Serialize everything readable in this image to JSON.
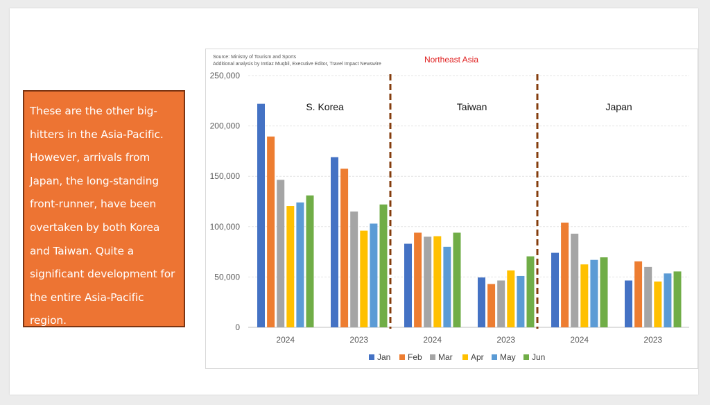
{
  "callout": {
    "text": "These are the other big-hitters in the Asia-Pacific. However, arrivals from Japan, the long-standing front-runner, have been overtaken by both Korea and Taiwan. Quite a significant development for the entire Asia-Pacific region."
  },
  "colors": {
    "callout_bg": "#ed7433",
    "title": "#e02020",
    "divider": "#843c0c",
    "Jan": "#4472c4",
    "Feb": "#ed7d31",
    "Mar": "#a5a5a5",
    "Apr": "#ffc000",
    "May": "#5b9bd5",
    "Jun": "#70ad47"
  },
  "chart_data": {
    "type": "bar",
    "title": "Northeast Asia",
    "source_lines": [
      "Source: Ministry of Tourism and Sports",
      "Additional analysis by Imtiaz Muqbil, Executive Editor, Travel Impact Newswire"
    ],
    "ylim": [
      0,
      250000
    ],
    "y_ticks": [
      "0",
      "50,000",
      "100,000",
      "150,000",
      "200,000",
      "250,000"
    ],
    "y_tick_values": [
      0,
      50000,
      100000,
      150000,
      200000,
      250000
    ],
    "grid": true,
    "legend_position": "bottom",
    "series_names": [
      "Jan",
      "Feb",
      "Mar",
      "Apr",
      "May",
      "Jun"
    ],
    "groups": [
      {
        "label": "S. Korea",
        "years": [
          {
            "year": "2024",
            "values": [
              222000,
              189500,
              146500,
              120500,
              124000,
              131000
            ]
          },
          {
            "year": "2023",
            "values": [
              169000,
              157500,
              115000,
              96000,
              103000,
              122000
            ]
          }
        ]
      },
      {
        "label": "Taiwan",
        "years": [
          {
            "year": "2024",
            "values": [
              83000,
              94000,
              90000,
              90500,
              80000,
              94000
            ]
          },
          {
            "year": "2023",
            "values": [
              49500,
              43000,
              46500,
              56500,
              51000,
              70500
            ]
          }
        ]
      },
      {
        "label": "Japan",
        "years": [
          {
            "year": "2024",
            "values": [
              74000,
              104000,
              93000,
              62500,
              67000,
              69500
            ]
          },
          {
            "year": "2023",
            "values": [
              46500,
              65500,
              60000,
              45500,
              53500,
              55500
            ]
          }
        ]
      }
    ]
  }
}
